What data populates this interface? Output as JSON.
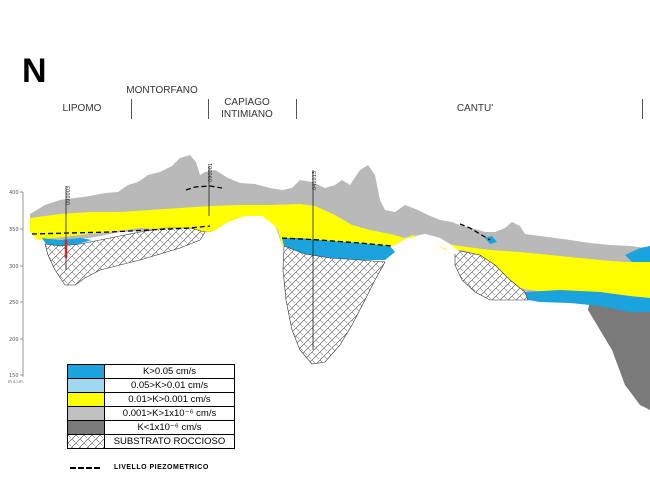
{
  "north_label": "N",
  "locations": [
    {
      "label": "LIPOMO"
    },
    {
      "label": "MONTORFANO"
    },
    {
      "label": "CAPIAGO\nINTIMIANO"
    },
    {
      "label": "CANTU'"
    }
  ],
  "y_axis": {
    "ticks": [
      "400",
      "350",
      "300",
      "250",
      "200",
      "150"
    ],
    "units": "m s.l.m."
  },
  "wells": [
    {
      "label": "090003"
    },
    {
      "label": "090001"
    },
    {
      "label": "041013"
    }
  ],
  "legend": {
    "items": [
      {
        "label": "K>0.05 cm/s",
        "color": "#1aa3dd"
      },
      {
        "label": "0.05>K>0.01 cm/s",
        "color": "#9fd8f0"
      },
      {
        "label": "0.01>K>0.001 cm/s",
        "color": "#ffff00"
      },
      {
        "label": "0.001>K>1x10⁻⁶ cm/s",
        "color": "#c0c0c0"
      },
      {
        "label": "K<1x10⁻⁶ cm/s",
        "color": "#7a7a7a"
      },
      {
        "label": "SUBSTRATO ROCCIOSO",
        "color": "hatch"
      }
    ],
    "piezometric_label": "LIVELLO PIEZOMETRICO"
  },
  "colors": {
    "grey_layer": "#b9b9b9",
    "yellow_layer": "#ffff00",
    "blue_layer": "#1aa3dd",
    "dark_layer": "#7a7a7a",
    "piezometric_well_mark": "#dd2222"
  }
}
